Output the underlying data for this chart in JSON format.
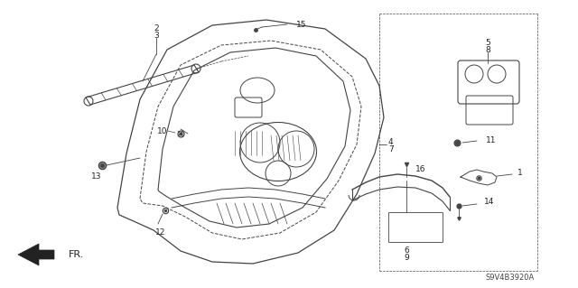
{
  "diagram_code": "S9V4B3920A",
  "bg_color": "#ffffff",
  "lc": "#444444",
  "tc": "#222222",
  "fs": 6.5
}
